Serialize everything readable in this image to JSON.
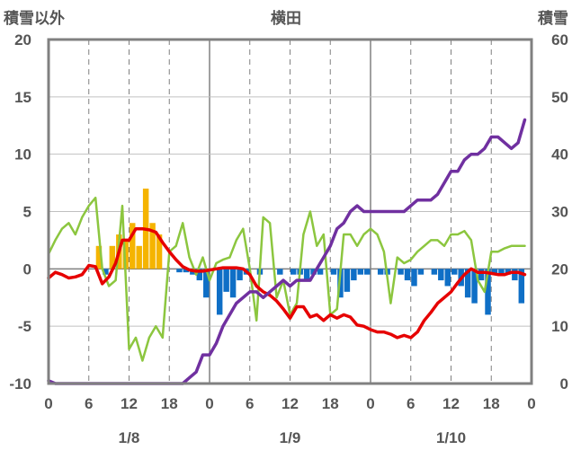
{
  "chart_data": {
    "type": "bar+line",
    "title": "横田",
    "left_axis_label": "積雪以外",
    "right_axis_label": "積雪",
    "left_ylim": [
      -10,
      20
    ],
    "left_yticks": [
      "20",
      "15",
      "10",
      "5",
      "0",
      "-5",
      "-10"
    ],
    "right_ylim": [
      0,
      60
    ],
    "right_yticks": [
      "60",
      "50",
      "40",
      "30",
      "20",
      "10",
      "0"
    ],
    "x_hours": [
      0,
      72
    ],
    "x_tick_labels": [
      "0",
      "6",
      "12",
      "18",
      "0",
      "6",
      "12",
      "18",
      "0",
      "6",
      "12",
      "18",
      "0"
    ],
    "date_labels": [
      "1/8",
      "1/9",
      "1/10"
    ],
    "grid": "dashed vertical every 6h, solid at day boundaries",
    "colors": {
      "positive_bar": "#f5b400",
      "negative_bar": "#0f6fc6",
      "temperature": "#e60000",
      "series_green": "#8cc63f",
      "snow_depth": "#7030a0",
      "frame": "#808080"
    },
    "bars": [
      {
        "h": 8,
        "v": 2
      },
      {
        "h": 9,
        "v": -0.5
      },
      {
        "h": 10,
        "v": 2
      },
      {
        "h": 11,
        "v": 3
      },
      {
        "h": 12,
        "v": 2.5
      },
      {
        "h": 13,
        "v": 4
      },
      {
        "h": 14,
        "v": 2
      },
      {
        "h": 15,
        "v": 7
      },
      {
        "h": 16,
        "v": 4
      },
      {
        "h": 17,
        "v": 3
      },
      {
        "h": 20,
        "v": -0.3
      },
      {
        "h": 21,
        "v": -0.3
      },
      {
        "h": 22,
        "v": -0.5
      },
      {
        "h": 23,
        "v": -1
      },
      {
        "h": 24,
        "v": -2.5
      },
      {
        "h": 26,
        "v": -4
      },
      {
        "h": 27,
        "v": -2
      },
      {
        "h": 28,
        "v": -2.5
      },
      {
        "h": 29,
        "v": -1
      },
      {
        "h": 30,
        "v": -0.5
      },
      {
        "h": 32,
        "v": -0.5
      },
      {
        "h": 35,
        "v": -0.5
      },
      {
        "h": 37,
        "v": -0.5
      },
      {
        "h": 38,
        "v": -0.5
      },
      {
        "h": 39,
        "v": -1
      },
      {
        "h": 40,
        "v": -0.5
      },
      {
        "h": 41,
        "v": -0.5
      },
      {
        "h": 43,
        "v": -0.5
      },
      {
        "h": 44,
        "v": -2.5
      },
      {
        "h": 45,
        "v": -2
      },
      {
        "h": 46,
        "v": -1
      },
      {
        "h": 47,
        "v": -0.5
      },
      {
        "h": 48,
        "v": -0.5
      },
      {
        "h": 50,
        "v": -0.5
      },
      {
        "h": 51,
        "v": -0.5
      },
      {
        "h": 53,
        "v": -0.5
      },
      {
        "h": 54,
        "v": -1
      },
      {
        "h": 55,
        "v": -1.5
      },
      {
        "h": 56,
        "v": -0.5
      },
      {
        "h": 58,
        "v": -0.5
      },
      {
        "h": 59,
        "v": -1
      },
      {
        "h": 60,
        "v": -1.5
      },
      {
        "h": 61,
        "v": -0.5
      },
      {
        "h": 62,
        "v": -1.5
      },
      {
        "h": 63,
        "v": -2.5
      },
      {
        "h": 64,
        "v": -3
      },
      {
        "h": 65,
        "v": -1
      },
      {
        "h": 66,
        "v": -4
      },
      {
        "h": 67,
        "v": -0.5
      },
      {
        "h": 68,
        "v": -0.5
      },
      {
        "h": 69,
        "v": -0.5
      },
      {
        "h": 70,
        "v": -1
      },
      {
        "h": 71,
        "v": -3
      }
    ],
    "temperature": [
      [
        0,
        -0.8
      ],
      [
        1,
        -0.3
      ],
      [
        2,
        -0.5
      ],
      [
        3,
        -0.8
      ],
      [
        4,
        -0.7
      ],
      [
        5,
        -0.5
      ],
      [
        6,
        0.3
      ],
      [
        7,
        0.2
      ],
      [
        8,
        -1.3
      ],
      [
        9,
        -0.7
      ],
      [
        10,
        0.5
      ],
      [
        11,
        2.5
      ],
      [
        12,
        2.5
      ],
      [
        13,
        3.5
      ],
      [
        14,
        3.5
      ],
      [
        15,
        3.4
      ],
      [
        16,
        3.2
      ],
      [
        17,
        2.3
      ],
      [
        18,
        1.5
      ],
      [
        19,
        0.8
      ],
      [
        20,
        0.2
      ],
      [
        21,
        -0.1
      ],
      [
        22,
        -0.2
      ],
      [
        23,
        -0.2
      ],
      [
        24,
        -0.1
      ],
      [
        25,
        0
      ],
      [
        26,
        0.1
      ],
      [
        27,
        0.1
      ],
      [
        28,
        0.1
      ],
      [
        29,
        0
      ],
      [
        30,
        -0.5
      ],
      [
        31,
        -1.5
      ],
      [
        32,
        -2
      ],
      [
        33,
        -2.3
      ],
      [
        34,
        -2.8
      ],
      [
        35,
        -3.5
      ],
      [
        36,
        -4.3
      ],
      [
        37,
        -3.3
      ],
      [
        38,
        -3.3
      ],
      [
        39,
        -4.2
      ],
      [
        40,
        -4
      ],
      [
        41,
        -4.5
      ],
      [
        42,
        -4
      ],
      [
        43,
        -4.3
      ],
      [
        44,
        -4
      ],
      [
        45,
        -4.2
      ],
      [
        46,
        -4.9
      ],
      [
        47,
        -5
      ],
      [
        48,
        -5.3
      ],
      [
        49,
        -5.5
      ],
      [
        50,
        -5.5
      ],
      [
        51,
        -5.7
      ],
      [
        52,
        -6
      ],
      [
        53,
        -5.8
      ],
      [
        54,
        -6
      ],
      [
        55,
        -5.5
      ],
      [
        56,
        -4.5
      ],
      [
        57,
        -3.8
      ],
      [
        58,
        -3
      ],
      [
        59,
        -2.5
      ],
      [
        60,
        -2
      ],
      [
        61,
        -1.2
      ],
      [
        62,
        -0.5
      ],
      [
        63,
        0
      ],
      [
        64,
        -0.3
      ],
      [
        65,
        -0.3
      ],
      [
        66,
        -0.4
      ],
      [
        67,
        -0.5
      ],
      [
        68,
        -0.5
      ],
      [
        69,
        -0.3
      ],
      [
        70,
        -0.3
      ],
      [
        71,
        -0.5
      ]
    ],
    "green_series": [
      [
        0,
        1.3
      ],
      [
        1,
        2.5
      ],
      [
        2,
        3.5
      ],
      [
        3,
        4
      ],
      [
        4,
        3
      ],
      [
        5,
        4.5
      ],
      [
        6,
        5.5
      ],
      [
        7,
        6.2
      ],
      [
        8,
        0
      ],
      [
        9,
        -1.5
      ],
      [
        10,
        -1
      ],
      [
        11,
        5.5
      ],
      [
        12,
        -7
      ],
      [
        13,
        -6
      ],
      [
        14,
        -8
      ],
      [
        15,
        -6
      ],
      [
        16,
        -5
      ],
      [
        17,
        -6
      ],
      [
        18,
        1.5
      ],
      [
        19,
        2
      ],
      [
        20,
        4
      ],
      [
        21,
        1
      ],
      [
        22,
        -0.5
      ],
      [
        23,
        1
      ],
      [
        24,
        -1
      ],
      [
        25,
        0.5
      ],
      [
        26,
        0.8
      ],
      [
        27,
        1
      ],
      [
        28,
        2.5
      ],
      [
        29,
        3.5
      ],
      [
        30,
        0
      ],
      [
        31,
        -4.5
      ],
      [
        32,
        4.5
      ],
      [
        33,
        4
      ],
      [
        34,
        -2.5
      ],
      [
        35,
        -1
      ],
      [
        36,
        -4
      ],
      [
        37,
        -3
      ],
      [
        38,
        3
      ],
      [
        39,
        5
      ],
      [
        40,
        2
      ],
      [
        41,
        3
      ],
      [
        42,
        -4
      ],
      [
        43,
        -3.5
      ],
      [
        44,
        3
      ],
      [
        45,
        3
      ],
      [
        46,
        2
      ],
      [
        47,
        3
      ],
      [
        48,
        3.5
      ],
      [
        49,
        3
      ],
      [
        50,
        1.5
      ],
      [
        51,
        -3
      ],
      [
        52,
        1
      ],
      [
        53,
        0.5
      ],
      [
        54,
        0.8
      ],
      [
        55,
        1.5
      ],
      [
        56,
        2
      ],
      [
        57,
        2.5
      ],
      [
        58,
        2.5
      ],
      [
        59,
        2
      ],
      [
        60,
        3
      ],
      [
        61,
        3
      ],
      [
        62,
        3.3
      ],
      [
        63,
        2.5
      ],
      [
        64,
        -1
      ],
      [
        65,
        -2
      ],
      [
        66,
        1.5
      ],
      [
        67,
        1.5
      ],
      [
        68,
        1.8
      ],
      [
        69,
        2
      ],
      [
        70,
        2
      ],
      [
        71,
        2
      ]
    ],
    "snow_depth": [
      [
        0,
        0.5
      ],
      [
        1,
        0
      ],
      [
        2,
        0
      ],
      [
        3,
        0
      ],
      [
        4,
        0
      ],
      [
        5,
        0
      ],
      [
        6,
        0
      ],
      [
        7,
        0
      ],
      [
        8,
        0
      ],
      [
        9,
        0
      ],
      [
        10,
        0
      ],
      [
        11,
        0
      ],
      [
        12,
        0
      ],
      [
        13,
        0
      ],
      [
        14,
        0
      ],
      [
        15,
        0
      ],
      [
        16,
        0
      ],
      [
        17,
        0
      ],
      [
        18,
        0
      ],
      [
        19,
        0
      ],
      [
        20,
        0
      ],
      [
        21,
        1
      ],
      [
        22,
        2
      ],
      [
        23,
        5
      ],
      [
        24,
        5
      ],
      [
        25,
        7
      ],
      [
        26,
        10
      ],
      [
        27,
        12
      ],
      [
        28,
        14
      ],
      [
        29,
        15
      ],
      [
        30,
        16
      ],
      [
        31,
        16
      ],
      [
        32,
        15
      ],
      [
        33,
        16
      ],
      [
        34,
        17
      ],
      [
        35,
        18
      ],
      [
        36,
        17
      ],
      [
        37,
        18
      ],
      [
        38,
        18
      ],
      [
        39,
        18
      ],
      [
        40,
        20
      ],
      [
        41,
        22
      ],
      [
        42,
        24
      ],
      [
        43,
        27
      ],
      [
        44,
        28
      ],
      [
        45,
        30
      ],
      [
        46,
        31
      ],
      [
        47,
        30
      ],
      [
        48,
        30
      ],
      [
        49,
        30
      ],
      [
        50,
        30
      ],
      [
        51,
        30
      ],
      [
        52,
        30
      ],
      [
        53,
        30
      ],
      [
        54,
        31
      ],
      [
        55,
        32
      ],
      [
        56,
        32
      ],
      [
        57,
        32
      ],
      [
        58,
        33
      ],
      [
        59,
        35
      ],
      [
        60,
        37
      ],
      [
        61,
        37
      ],
      [
        62,
        39
      ],
      [
        63,
        40
      ],
      [
        64,
        40
      ],
      [
        65,
        41
      ],
      [
        66,
        43
      ],
      [
        67,
        43
      ],
      [
        68,
        42
      ],
      [
        69,
        41
      ],
      [
        70,
        42
      ],
      [
        71,
        46
      ]
    ]
  }
}
